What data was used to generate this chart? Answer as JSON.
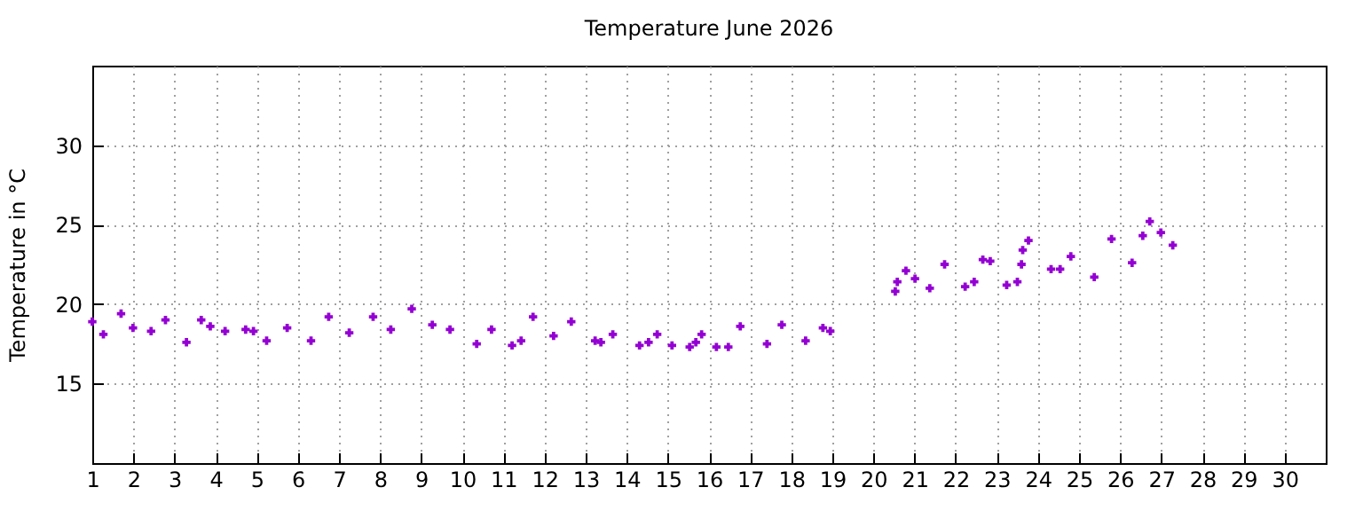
{
  "chart_data": {
    "type": "scatter",
    "title": "Temperature June 2026",
    "ylabel": "Temperature in °C",
    "xlim": [
      1,
      31
    ],
    "xticks": [
      1,
      2,
      3,
      4,
      5,
      6,
      7,
      8,
      9,
      10,
      11,
      12,
      13,
      14,
      15,
      16,
      17,
      18,
      19,
      20,
      21,
      22,
      23,
      24,
      25,
      26,
      27,
      28,
      29,
      30
    ],
    "ylim": [
      10,
      35
    ],
    "yticks": [
      15,
      20,
      25,
      30
    ],
    "grid": true,
    "marker": "cross",
    "series": [
      {
        "color": "#9400d3",
        "x": [
          1.0,
          1.27,
          1.7,
          1.99,
          2.43,
          2.78,
          3.29,
          3.65,
          3.87,
          4.23,
          4.73,
          4.92,
          5.24,
          5.74,
          6.32,
          6.75,
          7.25,
          7.83,
          8.26,
          8.77,
          9.27,
          9.7,
          10.35,
          10.71,
          11.21,
          11.43,
          11.72,
          12.22,
          12.65,
          13.23,
          13.37,
          13.66,
          14.31,
          14.53,
          14.74,
          15.1,
          15.53,
          15.68,
          15.82,
          16.18,
          16.47,
          16.76,
          17.41,
          17.77,
          18.35,
          18.77,
          18.95,
          20.53,
          20.58,
          20.79,
          21.01,
          21.37,
          21.73,
          22.23,
          22.45,
          22.66,
          22.84,
          23.24,
          23.5,
          23.6,
          23.63,
          23.77,
          24.32,
          24.54,
          24.8,
          25.37,
          25.79,
          26.29,
          26.55,
          26.72,
          26.99,
          27.28
        ],
        "values": [
          18.9,
          18.1,
          19.4,
          18.5,
          18.3,
          19.0,
          17.6,
          19.0,
          18.6,
          18.3,
          18.4,
          18.3,
          17.7,
          18.5,
          17.7,
          19.2,
          18.2,
          19.2,
          18.4,
          19.7,
          18.7,
          18.4,
          17.5,
          18.4,
          17.4,
          17.7,
          19.2,
          18.0,
          18.9,
          17.7,
          17.6,
          18.1,
          17.4,
          17.6,
          18.1,
          17.4,
          17.3,
          17.6,
          18.1,
          17.3,
          17.3,
          18.6,
          17.5,
          18.7,
          17.7,
          18.5,
          18.3,
          20.8,
          21.4,
          22.1,
          21.6,
          21.0,
          22.5,
          21.1,
          21.4,
          22.8,
          22.7,
          21.2,
          21.4,
          22.5,
          23.4,
          24.0,
          22.2,
          22.2,
          23.0,
          21.7,
          24.1,
          22.6,
          24.3,
          25.2,
          24.5,
          23.7
        ]
      }
    ]
  }
}
